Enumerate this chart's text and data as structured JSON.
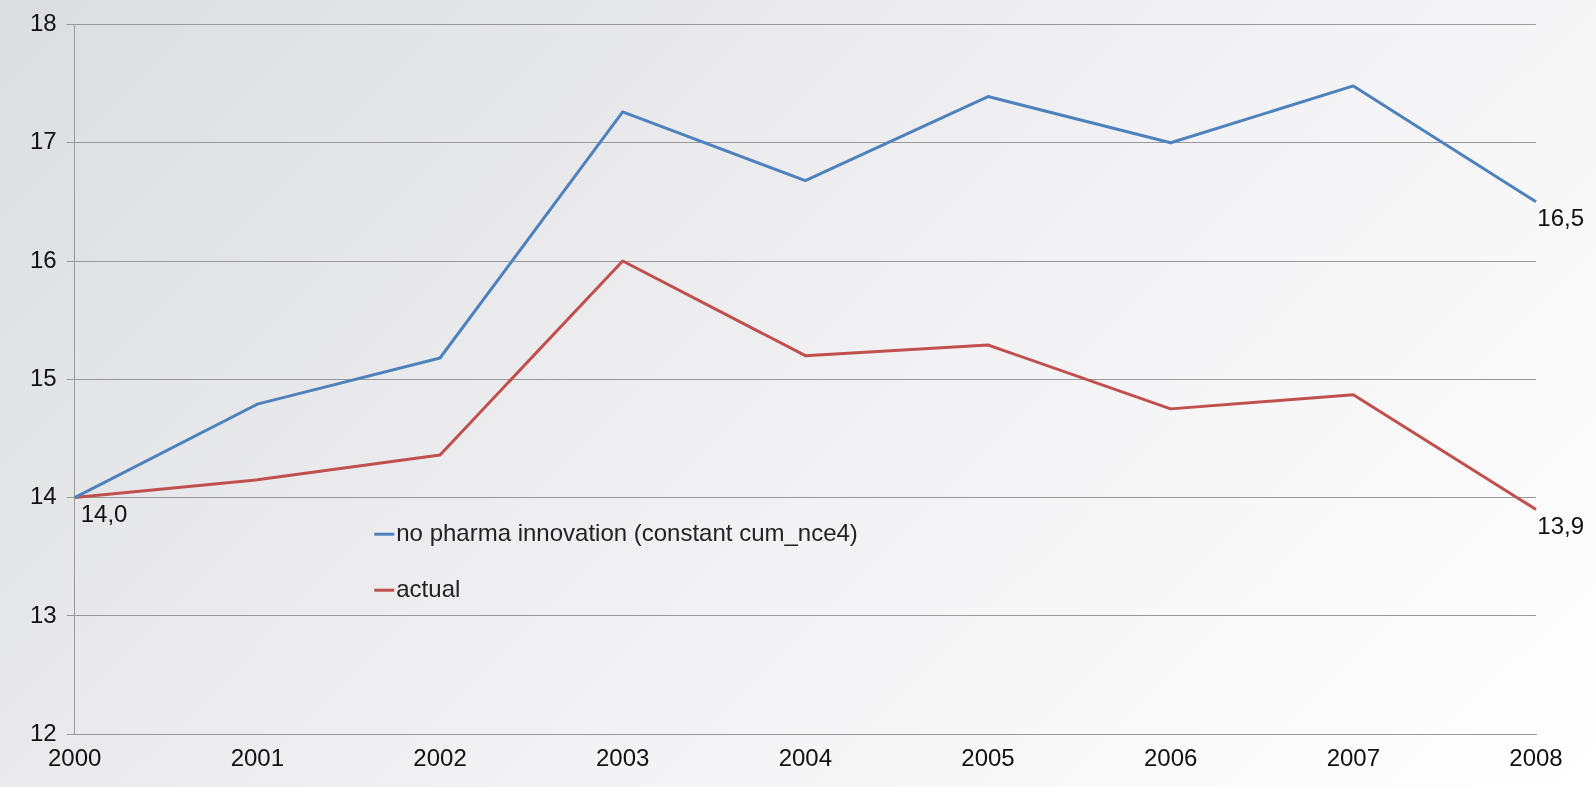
{
  "chart_data": {
    "type": "line",
    "categories": [
      "2000",
      "2001",
      "2002",
      "2003",
      "2004",
      "2005",
      "2006",
      "2007",
      "2008"
    ],
    "series": [
      {
        "name": "no pharma innovation (constant cum_nce4)",
        "color": "#4f81bd",
        "values": [
          14.0,
          14.79,
          15.18,
          17.26,
          16.68,
          17.39,
          17.0,
          17.48,
          16.5
        ],
        "value_labels": [
          null,
          null,
          null,
          null,
          null,
          null,
          null,
          null,
          "16,5"
        ]
      },
      {
        "name": "actual",
        "color": "#c0504d",
        "values": [
          14.0,
          14.15,
          14.36,
          16.0,
          15.2,
          15.29,
          14.75,
          14.87,
          13.9
        ],
        "value_labels": [
          "14,0",
          null,
          null,
          null,
          null,
          null,
          null,
          null,
          "13,9"
        ]
      }
    ],
    "ylim": [
      12,
      18
    ],
    "yticks": [
      12,
      13,
      14,
      15,
      16,
      17,
      18
    ],
    "grid": "y",
    "legend": "bottom left",
    "marker": "none",
    "line_style": "solid"
  }
}
